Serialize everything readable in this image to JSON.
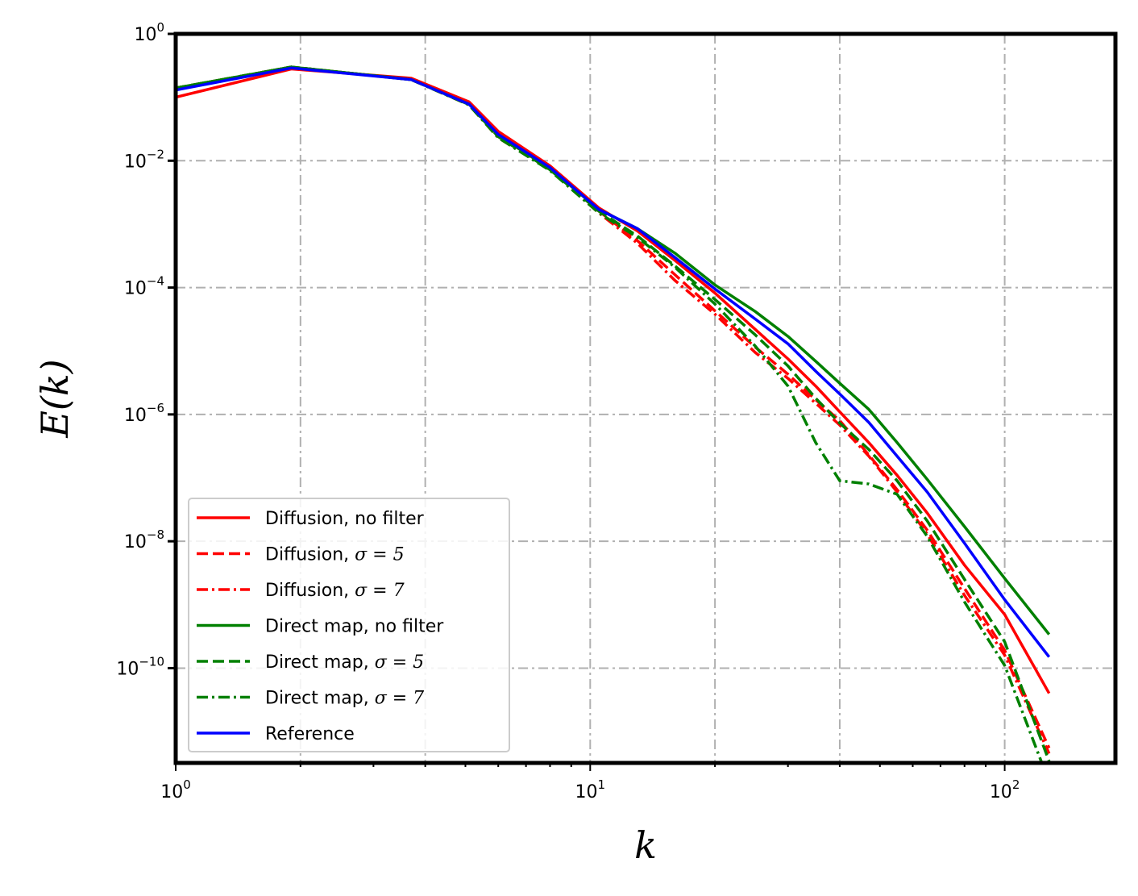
{
  "chart_data": {
    "type": "line",
    "xscale": "log",
    "yscale": "log",
    "xlim": [
      1,
      185
    ],
    "ylim": [
      3.2e-12,
      1
    ],
    "xlabel": "k",
    "ylabel": "E(k)",
    "x_ticks": [
      {
        "base": "10",
        "exp": "0",
        "value": 1
      },
      {
        "base": "10",
        "exp": "1",
        "value": 10
      },
      {
        "base": "10",
        "exp": "2",
        "value": 100
      }
    ],
    "y_ticks": [
      {
        "base": "10",
        "exp": "0",
        "value": 1
      },
      {
        "base": "10",
        "exp": "−2",
        "value": 0.01
      },
      {
        "base": "10",
        "exp": "−4",
        "value": 0.0001
      },
      {
        "base": "10",
        "exp": "−6",
        "value": 1e-06
      },
      {
        "base": "10",
        "exp": "−8",
        "value": 1e-08
      },
      {
        "base": "10",
        "exp": "−10",
        "value": 1e-10
      }
    ],
    "grid": true,
    "legend_position": "lower-left",
    "series": [
      {
        "name": "Diffusion, no filter",
        "legend_text": "Diffusion, no filter",
        "color": "#ff0000",
        "linestyle": "solid",
        "x": [
          1,
          1.9,
          3.7,
          5.1,
          6,
          8,
          10.5,
          13,
          16,
          20,
          25,
          30,
          35,
          40,
          47,
          55,
          65,
          80,
          100,
          128
        ],
        "y": [
          0.1,
          0.28,
          0.2,
          0.085,
          0.029,
          0.0083,
          0.0018,
          0.00078,
          0.00027,
          8.2e-05,
          2.2e-05,
          7.5e-06,
          2.8e-06,
          1.1e-06,
          3.6e-07,
          1.1e-07,
          2.8e-08,
          4.2e-09,
          7e-10,
          4e-11
        ]
      },
      {
        "name": "Diffusion, σ = 5",
        "legend_prefix": "Diffusion, ",
        "legend_sigma": "σ = 5",
        "color": "#ff0000",
        "linestyle": "dashed",
        "x": [
          1,
          1.9,
          3.7,
          5.1,
          6,
          8,
          10.5,
          13,
          16,
          20,
          25,
          30,
          35,
          40,
          47,
          55,
          65,
          80,
          100,
          128
        ],
        "y": [
          0.14,
          0.3,
          0.19,
          0.078,
          0.024,
          0.0073,
          0.0016,
          0.00055,
          0.00016,
          4.3e-05,
          1.15e-05,
          4.3e-06,
          1.7e-06,
          8e-07,
          2.3e-07,
          6.5e-08,
          1.5e-08,
          1.8e-09,
          1.9e-10,
          5.5e-12
        ]
      },
      {
        "name": "Diffusion, σ = 7",
        "legend_prefix": "Diffusion, ",
        "legend_sigma": "σ = 7",
        "color": "#ff0000",
        "linestyle": "dashdot",
        "x": [
          1,
          1.9,
          3.7,
          5.1,
          6,
          8,
          10.5,
          13,
          16,
          20,
          25,
          30,
          35,
          40,
          47,
          55,
          65,
          80,
          100,
          128
        ],
        "y": [
          0.14,
          0.3,
          0.19,
          0.076,
          0.023,
          0.0071,
          0.0015,
          0.0005,
          0.00013,
          3.8e-05,
          9.5e-06,
          3.7e-06,
          1.5e-06,
          6.8e-07,
          2.2e-07,
          6e-08,
          1.3e-08,
          1.4e-09,
          1.6e-10,
          4.5e-12
        ]
      },
      {
        "name": "Direct map, no filter",
        "legend_text": "Direct map, no filter",
        "color": "#008000",
        "linestyle": "solid",
        "x": [
          1,
          1.9,
          3.7,
          5.1,
          6,
          8,
          10.5,
          13,
          16,
          20,
          25,
          30,
          35,
          40,
          47,
          55,
          65,
          80,
          100,
          128
        ],
        "y": [
          0.14,
          0.3,
          0.19,
          0.078,
          0.025,
          0.0075,
          0.0017,
          0.00085,
          0.00035,
          0.00011,
          4.2e-05,
          1.7e-05,
          6.9e-06,
          3.1e-06,
          1.2e-06,
          3.6e-07,
          9.5e-08,
          1.7e-08,
          2.6e-09,
          3.4e-10
        ]
      },
      {
        "name": "Direct map, σ = 5",
        "legend_prefix": "Direct map, ",
        "legend_sigma": "σ = 5",
        "color": "#008000",
        "linestyle": "dashed",
        "x": [
          1,
          1.9,
          3.7,
          5.1,
          6,
          8,
          10.5,
          13,
          16,
          20,
          25,
          30,
          35,
          40,
          47,
          55,
          65,
          80,
          100,
          128
        ],
        "y": [
          0.14,
          0.3,
          0.19,
          0.077,
          0.024,
          0.0072,
          0.0016,
          0.00065,
          0.00022,
          6.5e-05,
          1.8e-05,
          5.8e-06,
          1.8e-06,
          7.3e-07,
          2.8e-07,
          9e-08,
          2.1e-08,
          2.5e-09,
          2.6e-10,
          3.4e-12
        ]
      },
      {
        "name": "Direct map, σ = 7",
        "legend_prefix": "Direct map, ",
        "legend_sigma": "σ = 7",
        "color": "#008000",
        "linestyle": "dashdot",
        "x": [
          1,
          1.9,
          3.7,
          5.1,
          6,
          8,
          10.5,
          13,
          16,
          20,
          25,
          30,
          35,
          40,
          47,
          55,
          65,
          80,
          100,
          128
        ],
        "y": [
          0.14,
          0.3,
          0.19,
          0.076,
          0.023,
          0.007,
          0.0015,
          0.00062,
          0.00021,
          5.5e-05,
          1.2e-05,
          2.8e-06,
          3.6e-07,
          9e-08,
          8e-08,
          5.5e-08,
          1.2e-08,
          1.1e-09,
          1.1e-10,
          1.6e-12
        ]
      },
      {
        "name": "Reference",
        "legend_text": "Reference",
        "color": "#0000ff",
        "linestyle": "solid",
        "x": [
          1,
          1.9,
          3.7,
          5.1,
          6,
          8,
          10.5,
          13,
          16,
          20,
          25,
          30,
          35,
          40,
          47,
          55,
          65,
          80,
          100,
          128
        ],
        "y": [
          0.13,
          0.29,
          0.19,
          0.078,
          0.026,
          0.0078,
          0.0017,
          0.00085,
          0.0003,
          9.5e-05,
          3.2e-05,
          1.3e-05,
          4.8e-06,
          2.1e-06,
          7.5e-07,
          2.2e-07,
          6e-08,
          9.3e-09,
          1.2e-09,
          1.5e-10
        ]
      }
    ]
  }
}
